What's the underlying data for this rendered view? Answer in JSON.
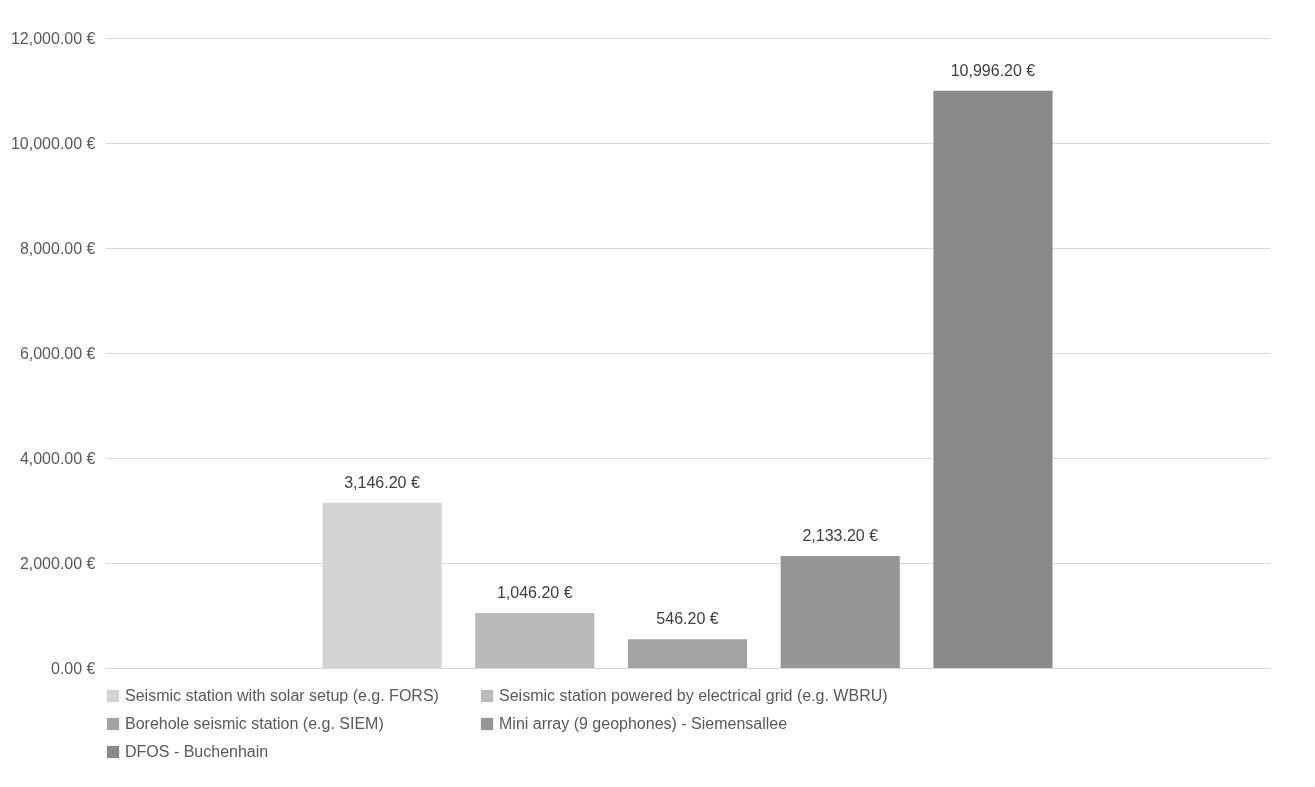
{
  "chart_data": {
    "type": "bar",
    "categories": [
      null
    ],
    "series": [
      {
        "name": "Seismic station with solar setup (e.g. FORS)",
        "color": "#d4d4d4",
        "values": [
          3146.2
        ]
      },
      {
        "name": "Seismic station powered by electrical grid (e.g. WBRU)",
        "color": "#bababa",
        "values": [
          1046.2
        ]
      },
      {
        "name": "Borehole seismic station (e.g. SIEM)",
        "color": "#a3a3a3",
        "values": [
          546.2
        ]
      },
      {
        "name": "Mini array (9 geophones) - Siemensallee",
        "color": "#969696",
        "values": [
          2133.2
        ]
      },
      {
        "name": "DFOS - Buchenhain",
        "color": "#898989",
        "values": [
          10996.2
        ]
      }
    ],
    "value_labels": [
      "3,146.20 €",
      "1,046.20 €",
      "546.20 €",
      "2,133.20 €",
      "10,996.20 €"
    ],
    "ylim": [
      0,
      12000
    ],
    "yticks": [
      {
        "value": 0,
        "label": "0.00 €"
      },
      {
        "value": 2000,
        "label": "2,000.00 €"
      },
      {
        "value": 4000,
        "label": "4,000.00 €"
      },
      {
        "value": 6000,
        "label": "6,000.00 €"
      },
      {
        "value": 8000,
        "label": "8,000.00 €"
      },
      {
        "value": 10000,
        "label": "10,000.00 €"
      },
      {
        "value": 12000,
        "label": "12,000.00 €"
      }
    ],
    "grid": "y",
    "legend": "bottom"
  }
}
